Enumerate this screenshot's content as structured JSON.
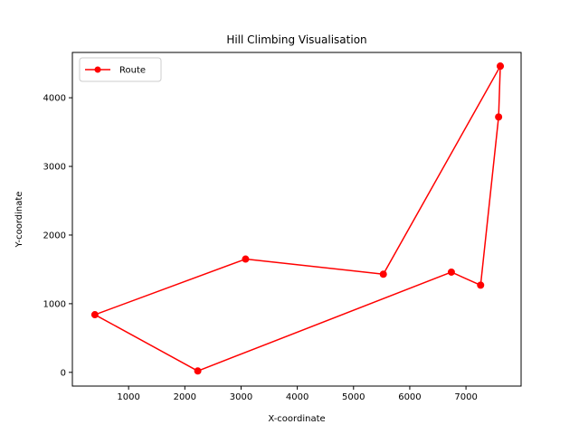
{
  "chart_data": {
    "type": "line",
    "title": "Hill Climbing Visualisation",
    "xlabel": "X-coordinate",
    "ylabel": "Y-coordinate",
    "xlim": [
      0,
      7980
    ],
    "ylim": [
      -200,
      4660
    ],
    "xticks": [
      1000,
      2000,
      3000,
      4000,
      5000,
      6000,
      7000
    ],
    "yticks": [
      0,
      1000,
      2000,
      3000,
      4000
    ],
    "grid": false,
    "legend_position": "top-left",
    "series": [
      {
        "name": "Route",
        "color": "#ff0000",
        "marker": "circle",
        "points": [
          {
            "x": 7610,
            "y": 4460
          },
          {
            "x": 7580,
            "y": 3720
          },
          {
            "x": 7260,
            "y": 1270
          },
          {
            "x": 6740,
            "y": 1460
          },
          {
            "x": 2230,
            "y": 20
          },
          {
            "x": 400,
            "y": 840
          },
          {
            "x": 3080,
            "y": 1650
          },
          {
            "x": 5530,
            "y": 1430
          },
          {
            "x": 7610,
            "y": 4460
          }
        ]
      }
    ]
  }
}
